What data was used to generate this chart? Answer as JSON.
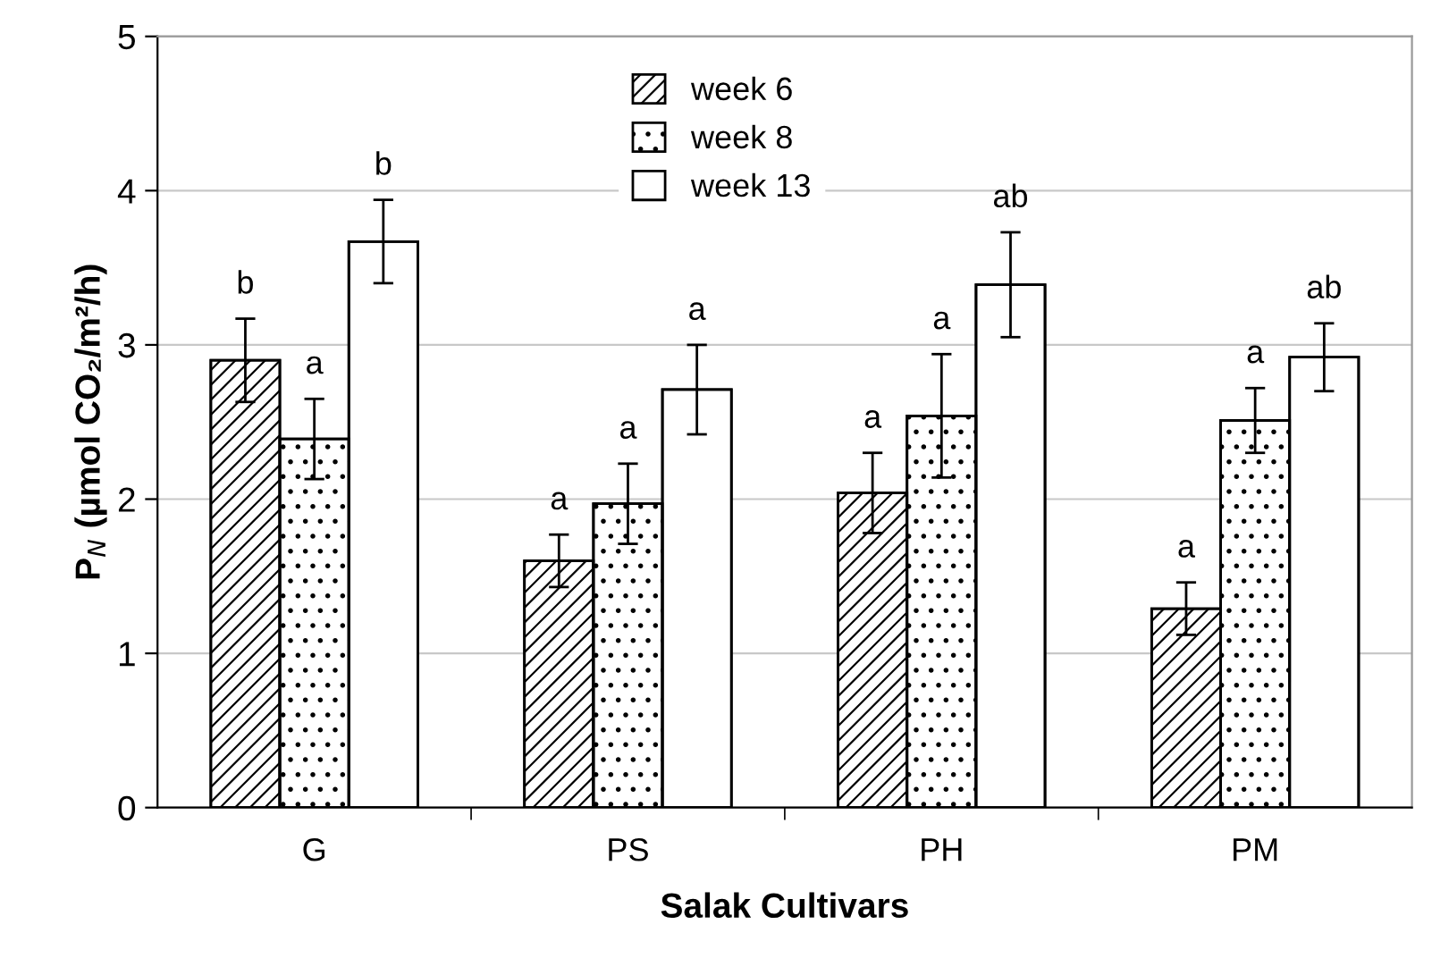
{
  "chart_data": {
    "type": "bar",
    "xlabel": "Salak Cultivars",
    "ylabel": "P$_{N}$ (µmol CO₂/m²/h)",
    "categories": [
      "G",
      "PS",
      "PH",
      "PM"
    ],
    "series": [
      {
        "name": "week 6",
        "color": "#000000",
        "values": [
          2.9,
          1.6,
          2.04,
          1.29
        ],
        "errors": [
          0.27,
          0.17,
          0.26,
          0.17
        ]
      },
      {
        "name": "week 8",
        "color": "#000000",
        "values": [
          2.39,
          1.97,
          2.54,
          2.51
        ],
        "errors": [
          0.26,
          0.26,
          0.4,
          0.21
        ]
      },
      {
        "name": "week 13",
        "color": "#ffffff",
        "values": [
          3.67,
          2.71,
          3.39,
          2.92
        ],
        "errors": [
          0.27,
          0.29,
          0.34,
          0.22
        ]
      }
    ],
    "annotations": [
      "b",
      "a",
      "b",
      "a",
      "a",
      "a",
      "a",
      "a",
      "ab",
      "a",
      "a",
      "ab"
    ],
    "ylim": [
      0,
      5
    ],
    "yticks": [
      0,
      1,
      2,
      3,
      4,
      5
    ],
    "grid": "y",
    "legend": "top"
  }
}
